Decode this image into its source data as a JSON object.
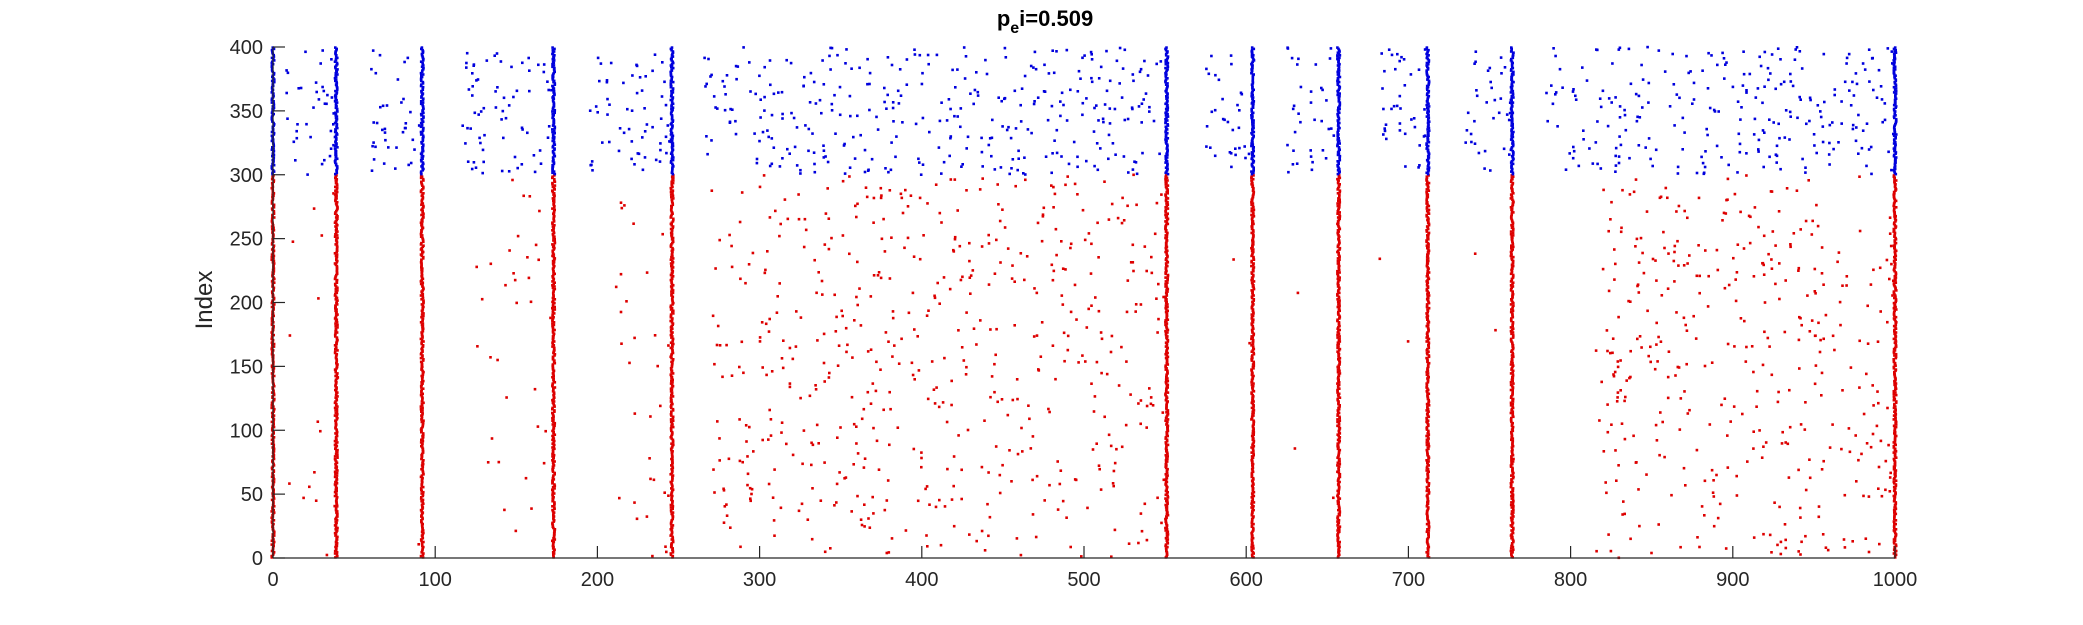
{
  "chart_data": {
    "type": "scatter",
    "title": "p",
    "title_subscript": "e",
    "title_suffix": "i=0.509",
    "xlabel": "",
    "ylabel": "Index",
    "xlim": [
      0,
      1000
    ],
    "ylim": [
      0,
      400
    ],
    "xticks": [
      0,
      100,
      200,
      300,
      400,
      500,
      600,
      700,
      800,
      900,
      1000
    ],
    "yticks": [
      0,
      50,
      100,
      150,
      200,
      250,
      300,
      350,
      400
    ],
    "grid": false,
    "series": [
      {
        "color": "#dd0000",
        "index_range": [
          0,
          300
        ],
        "burst_times": [
          0,
          39,
          92,
          173,
          246,
          551,
          604,
          657,
          712,
          764,
          1000
        ],
        "sparse_regions": [
          {
            "x": [
              10,
              40
            ],
            "density": 0.15
          },
          {
            "x": [
              85,
              92
            ],
            "density": 0.05
          },
          {
            "x": [
              125,
              173
            ],
            "density": 0.2
          },
          {
            "x": [
              210,
              246
            ],
            "density": 0.25
          },
          {
            "x": [
              270,
              551
            ],
            "density": 0.55
          },
          {
            "x": [
              575,
              604
            ],
            "density": 0.02
          },
          {
            "x": [
              620,
              657
            ],
            "density": 0.02
          },
          {
            "x": [
              680,
              712
            ],
            "density": 0.02
          },
          {
            "x": [
              740,
              764
            ],
            "density": 0.02
          },
          {
            "x": [
              815,
              1000
            ],
            "density": 0.6
          }
        ]
      },
      {
        "color": "#0000dd",
        "index_range": [
          300,
          400
        ],
        "burst_times": [
          0,
          39,
          92,
          173,
          246,
          551,
          604,
          657,
          712,
          764,
          1000
        ],
        "sparse_regions": [
          {
            "x": [
              8,
              39
            ],
            "density": 1.0
          },
          {
            "x": [
              60,
              92
            ],
            "density": 1.0
          },
          {
            "x": [
              115,
              173
            ],
            "density": 1.0
          },
          {
            "x": [
              195,
              246
            ],
            "density": 1.0
          },
          {
            "x": [
              265,
              551
            ],
            "density": 1.0
          },
          {
            "x": [
              575,
              604
            ],
            "density": 1.0
          },
          {
            "x": [
              625,
              657
            ],
            "density": 1.0
          },
          {
            "x": [
              680,
              712
            ],
            "density": 1.0
          },
          {
            "x": [
              735,
              764
            ],
            "density": 1.0
          },
          {
            "x": [
              785,
              1000
            ],
            "density": 1.0
          }
        ]
      }
    ]
  }
}
